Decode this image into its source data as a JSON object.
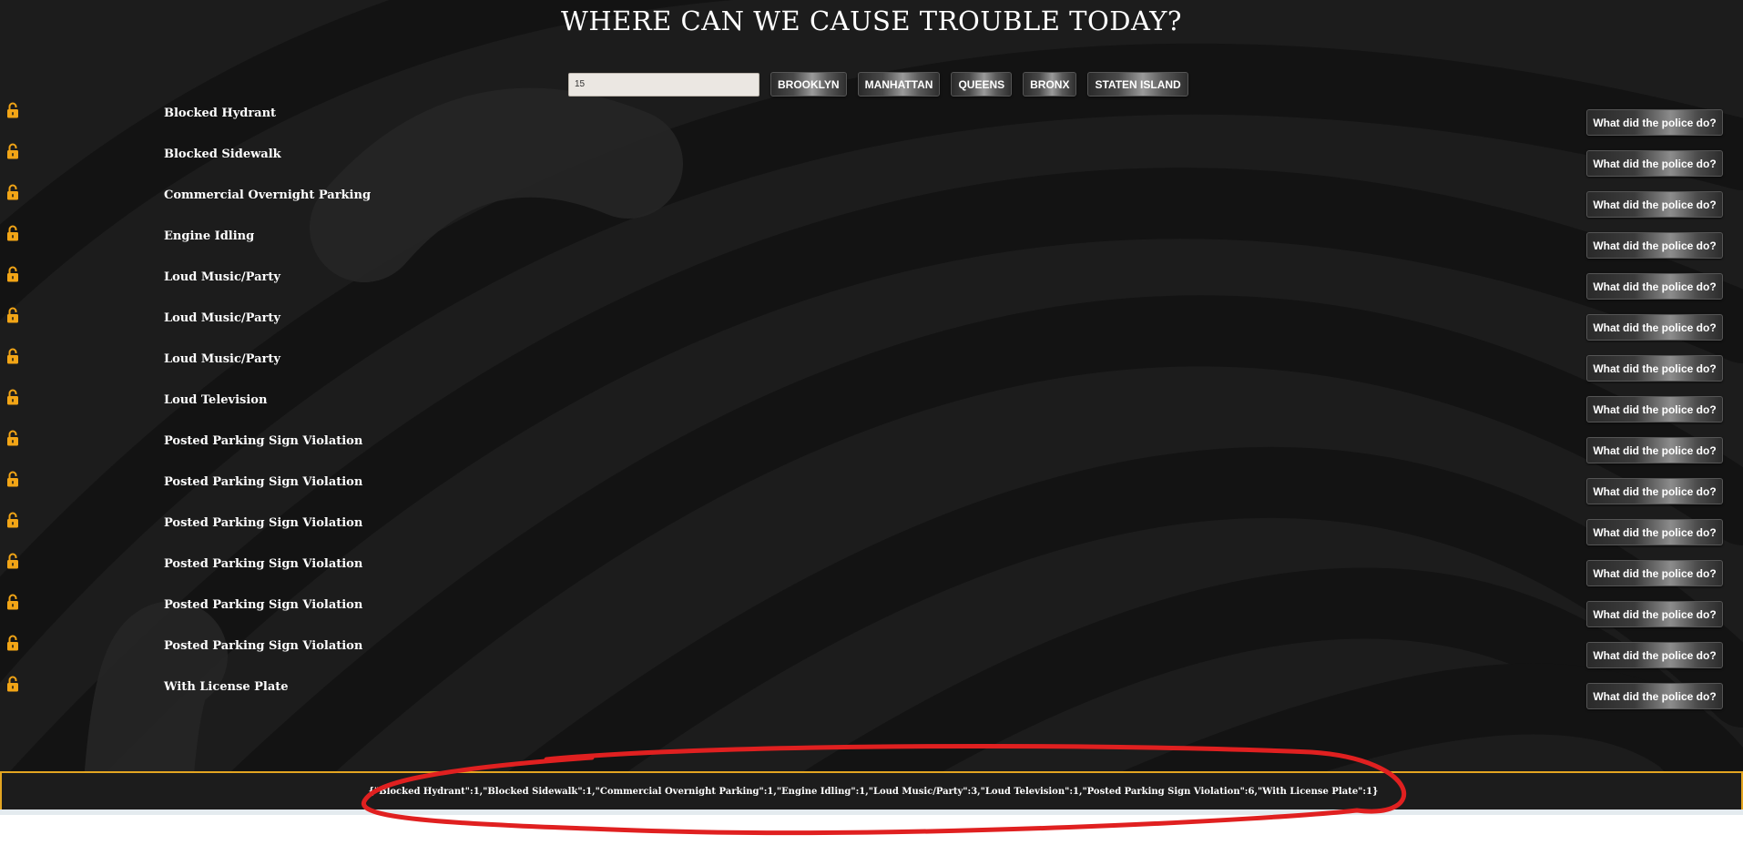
{
  "header": {
    "title": "WHERE CAN WE CAUSE TROUBLE TODAY?"
  },
  "controls": {
    "count_value": "15",
    "boroughs": [
      "BROOKLYN",
      "MANHATTAN",
      "QUEENS",
      "BRONX",
      "STATEN ISLAND"
    ]
  },
  "complaints": [
    {
      "label": "Blocked Hydrant",
      "button": "What did the police do?",
      "icon": "lock-icon"
    },
    {
      "label": "Blocked Sidewalk",
      "button": "What did the police do?",
      "icon": "lock-icon"
    },
    {
      "label": "Commercial Overnight Parking",
      "button": "What did the police do?",
      "icon": "lock-icon"
    },
    {
      "label": "Engine Idling",
      "button": "What did the police do?",
      "icon": "lock-icon"
    },
    {
      "label": "Loud Music/Party",
      "button": "What did the police do?",
      "icon": "lock-icon"
    },
    {
      "label": "Loud Music/Party",
      "button": "What did the police do?",
      "icon": "lock-icon"
    },
    {
      "label": "Loud Music/Party",
      "button": "What did the police do?",
      "icon": "lock-icon"
    },
    {
      "label": "Loud Television",
      "button": "What did the police do?",
      "icon": "lock-icon"
    },
    {
      "label": "Posted Parking Sign Violation",
      "button": "What did the police do?",
      "icon": "lock-icon"
    },
    {
      "label": "Posted Parking Sign Violation",
      "button": "What did the police do?",
      "icon": "lock-icon"
    },
    {
      "label": "Posted Parking Sign Violation",
      "button": "What did the police do?",
      "icon": "lock-icon"
    },
    {
      "label": "Posted Parking Sign Violation",
      "button": "What did the police do?",
      "icon": "lock-icon"
    },
    {
      "label": "Posted Parking Sign Violation",
      "button": "What did the police do?",
      "icon": "lock-icon"
    },
    {
      "label": "Posted Parking Sign Violation",
      "button": "What did the police do?",
      "icon": "lock-icon"
    },
    {
      "label": "With License Plate",
      "button": "What did the police do?",
      "icon": "lock-icon"
    }
  ],
  "summary": {
    "text": "{\"Blocked Hydrant\":1,\"Blocked Sidewalk\":1,\"Commercial Overnight Parking\":1,\"Engine Idling\":1,\"Loud Music/Party\":3,\"Loud Television\":1,\"Posted Parking Sign Violation\":6,\"With License Plate\":1}"
  },
  "colors": {
    "background": "#1c1c1c",
    "arc_shade": "#101010",
    "lock": "#f2a516",
    "summary_border": "#e3a521",
    "annotation": "#e02020"
  }
}
